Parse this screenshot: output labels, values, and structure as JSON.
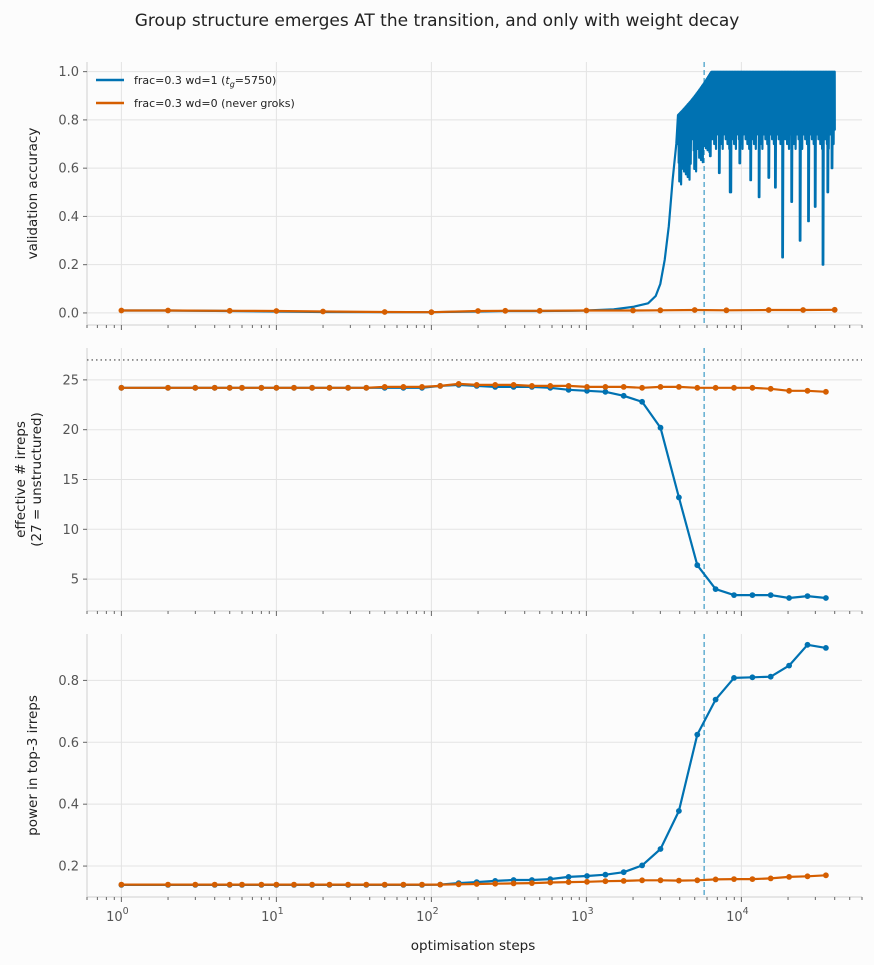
{
  "figure": {
    "title": "Group structure emerges AT the transition, and only with weight decay",
    "xlabel": "optimisation steps"
  },
  "colors": {
    "wd1": "#0072b2",
    "wd0": "#d55e00",
    "vline": "#3b9ac6",
    "hline": "#666666",
    "grid": "#e3e3e3",
    "spine": "#cfcfcf"
  },
  "chart_data": [
    {
      "type": "line",
      "panel": "top",
      "ylabel": "validation accuracy",
      "xscale": "log",
      "xlim": [
        0.6,
        60000
      ],
      "ylim": [
        -0.05,
        1.04
      ],
      "yticks": [
        0.0,
        0.2,
        0.4,
        0.6,
        0.8,
        1.0
      ],
      "ytick_labels": [
        "0.0",
        "0.2",
        "0.4",
        "0.6",
        "0.8",
        "1.0"
      ],
      "vline_x": 5750,
      "legend": "top-left",
      "series": [
        {
          "name": "frac=0.3 wd=1  (t_g=5750)",
          "color": "#0072b2",
          "x": [
            1,
            2,
            5,
            10,
            20,
            50,
            100,
            200,
            300,
            500,
            800,
            1000,
            1500,
            2000,
            2500,
            2800,
            3000,
            3200,
            3400,
            3600,
            3800,
            4000,
            4300,
            4600,
            5000,
            5500,
            6000,
            7000,
            8000,
            10000,
            13000,
            17000,
            22000,
            30000,
            35000,
            40000
          ],
          "y": [
            0.01,
            0.01,
            0.008,
            0.006,
            0.004,
            0.003,
            0.003,
            0.006,
            0.008,
            0.008,
            0.009,
            0.01,
            0.015,
            0.025,
            0.04,
            0.07,
            0.12,
            0.22,
            0.36,
            0.55,
            0.7,
            0.78,
            0.86,
            0.92,
            0.96,
            0.98,
            1.0,
            1.0,
            1.0,
            1.0,
            1.0,
            1.0,
            1.0,
            1.0,
            1.0,
            1.0
          ],
          "dips": [
            [
              4200,
              0.6
            ],
            [
              4800,
              0.72
            ],
            [
              5200,
              0.68
            ],
            [
              6300,
              0.65
            ],
            [
              7200,
              0.58
            ],
            [
              8500,
              0.5
            ],
            [
              9800,
              0.62
            ],
            [
              11500,
              0.55
            ],
            [
              13000,
              0.48
            ],
            [
              15000,
              0.56
            ],
            [
              16500,
              0.52
            ],
            [
              18500,
              0.23
            ],
            [
              21000,
              0.46
            ],
            [
              24000,
              0.3
            ],
            [
              27000,
              0.38
            ],
            [
              30000,
              0.44
            ],
            [
              33500,
              0.2
            ],
            [
              36000,
              0.5
            ],
            [
              38500,
              0.6
            ]
          ],
          "label_parts": [
            "frac=0.3 wd=1  (",
            "t",
            "g",
            "=5750)"
          ]
        },
        {
          "name": "frac=0.3 wd=0  (never groks)",
          "color": "#d55e00",
          "x": [
            1,
            2,
            5,
            10,
            20,
            50,
            100,
            200,
            300,
            500,
            1000,
            2000,
            3000,
            5000,
            8000,
            15000,
            25000,
            40000
          ],
          "y": [
            0.01,
            0.01,
            0.009,
            0.008,
            0.006,
            0.004,
            0.003,
            0.008,
            0.009,
            0.009,
            0.01,
            0.01,
            0.011,
            0.012,
            0.011,
            0.012,
            0.012,
            0.013
          ]
        }
      ]
    },
    {
      "type": "line",
      "panel": "middle",
      "ylabel": "effective # irreps",
      "ylabel2": "(27 = unstructured)",
      "xscale": "log",
      "xlim": [
        0.6,
        60000
      ],
      "ylim": [
        1.8,
        28.2
      ],
      "yticks": [
        5,
        10,
        15,
        20,
        25
      ],
      "ytick_labels": [
        "5",
        "10",
        "15",
        "20",
        "25"
      ],
      "hline_y": 27,
      "vline_x": 5750,
      "series": [
        {
          "name": "frac=0.3 wd=1",
          "color": "#0072b2",
          "x": [
            1,
            2,
            3,
            4,
            5,
            6,
            8,
            10,
            13,
            17,
            22,
            29,
            38,
            50,
            66,
            87,
            114,
            150,
            196,
            258,
            339,
            445,
            585,
            768,
            1009,
            1326,
            1742,
            2288,
            3007,
            3950,
            5191,
            6820,
            8960,
            11772,
            15466,
            20320,
            26695,
            35070
          ],
          "y": [
            24.2,
            24.2,
            24.2,
            24.2,
            24.2,
            24.2,
            24.2,
            24.2,
            24.2,
            24.2,
            24.2,
            24.2,
            24.2,
            24.2,
            24.2,
            24.2,
            24.4,
            24.5,
            24.4,
            24.3,
            24.3,
            24.3,
            24.2,
            24.0,
            23.9,
            23.8,
            23.4,
            22.8,
            20.2,
            13.2,
            6.4,
            4.0,
            3.4,
            3.4,
            3.4,
            3.1,
            3.3,
            3.1
          ]
        },
        {
          "name": "frac=0.3 wd=0",
          "color": "#d55e00",
          "x": [
            1,
            2,
            3,
            4,
            5,
            6,
            8,
            10,
            13,
            17,
            22,
            29,
            38,
            50,
            66,
            87,
            114,
            150,
            196,
            258,
            339,
            445,
            585,
            768,
            1009,
            1326,
            1742,
            2288,
            3007,
            3950,
            5191,
            6820,
            8960,
            11772,
            15466,
            20320,
            26695,
            35070
          ],
          "y": [
            24.2,
            24.2,
            24.2,
            24.2,
            24.2,
            24.2,
            24.2,
            24.2,
            24.2,
            24.2,
            24.2,
            24.2,
            24.2,
            24.3,
            24.3,
            24.3,
            24.4,
            24.6,
            24.5,
            24.5,
            24.5,
            24.4,
            24.4,
            24.4,
            24.3,
            24.3,
            24.3,
            24.2,
            24.3,
            24.3,
            24.2,
            24.2,
            24.2,
            24.2,
            24.1,
            23.9,
            23.9,
            23.8
          ]
        }
      ]
    },
    {
      "type": "line",
      "panel": "bottom",
      "ylabel": "power in top-3 irreps",
      "xscale": "log",
      "xlim": [
        0.6,
        60000
      ],
      "xticks": [
        1,
        10,
        100,
        1000,
        10000
      ],
      "xtick_base": "10",
      "xtick_exps": [
        "0",
        "1",
        "2",
        "3",
        "4"
      ],
      "ylim": [
        0.1,
        0.95
      ],
      "yticks": [
        0.2,
        0.4,
        0.6,
        0.8
      ],
      "ytick_labels": [
        "0.2",
        "0.4",
        "0.6",
        "0.8"
      ],
      "vline_x": 5750,
      "series": [
        {
          "name": "frac=0.3 wd=1",
          "color": "#0072b2",
          "x": [
            1,
            2,
            3,
            4,
            5,
            6,
            8,
            10,
            13,
            17,
            22,
            29,
            38,
            50,
            66,
            87,
            114,
            150,
            196,
            258,
            339,
            445,
            585,
            768,
            1009,
            1326,
            1742,
            2288,
            3007,
            3950,
            5191,
            6820,
            8960,
            11772,
            15466,
            20320,
            26695,
            35070
          ],
          "y": [
            0.139,
            0.139,
            0.139,
            0.139,
            0.139,
            0.139,
            0.139,
            0.139,
            0.139,
            0.139,
            0.139,
            0.139,
            0.139,
            0.139,
            0.139,
            0.139,
            0.14,
            0.145,
            0.148,
            0.152,
            0.155,
            0.155,
            0.158,
            0.165,
            0.168,
            0.172,
            0.18,
            0.202,
            0.255,
            0.378,
            0.625,
            0.738,
            0.808,
            0.81,
            0.812,
            0.848,
            0.915,
            0.905
          ]
        },
        {
          "name": "frac=0.3 wd=0",
          "color": "#d55e00",
          "x": [
            1,
            2,
            3,
            4,
            5,
            6,
            8,
            10,
            13,
            17,
            22,
            29,
            38,
            50,
            66,
            87,
            114,
            150,
            196,
            258,
            339,
            445,
            585,
            768,
            1009,
            1326,
            1742,
            2288,
            3007,
            3950,
            5191,
            6820,
            8960,
            11772,
            15466,
            20320,
            26695,
            35070
          ],
          "y": [
            0.14,
            0.14,
            0.14,
            0.14,
            0.14,
            0.14,
            0.14,
            0.14,
            0.14,
            0.14,
            0.14,
            0.14,
            0.14,
            0.14,
            0.14,
            0.14,
            0.14,
            0.141,
            0.142,
            0.143,
            0.144,
            0.145,
            0.147,
            0.148,
            0.149,
            0.151,
            0.152,
            0.154,
            0.154,
            0.153,
            0.154,
            0.157,
            0.158,
            0.158,
            0.16,
            0.165,
            0.167,
            0.17
          ]
        }
      ]
    }
  ]
}
